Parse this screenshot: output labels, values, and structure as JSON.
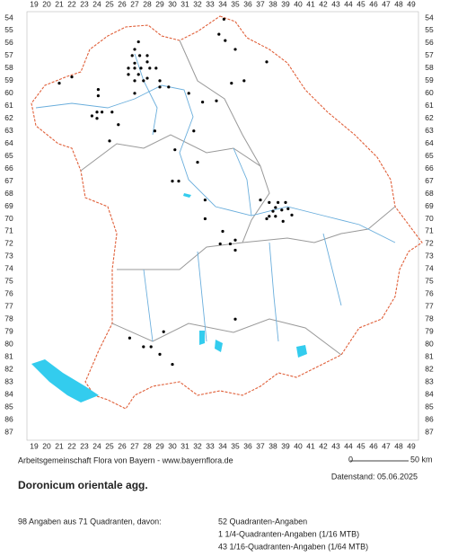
{
  "map": {
    "x_labels": [
      19,
      20,
      21,
      22,
      23,
      24,
      25,
      26,
      27,
      28,
      29,
      30,
      31,
      32,
      33,
      34,
      35,
      36,
      37,
      38,
      39,
      40,
      41,
      42,
      43,
      44,
      45,
      46,
      47,
      48,
      49
    ],
    "y_labels": [
      54,
      55,
      56,
      57,
      58,
      59,
      60,
      61,
      62,
      63,
      64,
      65,
      66,
      67,
      68,
      69,
      70,
      71,
      72,
      73,
      74,
      75,
      76,
      77,
      78,
      79,
      80,
      81,
      82,
      83,
      84,
      85,
      86,
      87
    ],
    "records": {
      "x": [
        34.1,
        33.7,
        34.2,
        27.3,
        27,
        26.8,
        27.4,
        28,
        27,
        28,
        26.5,
        27,
        27.5,
        28.2,
        28.7,
        26.5,
        27.3,
        28,
        27,
        27.7,
        29,
        35.7,
        34.7,
        37.5,
        35,
        21,
        22,
        24.1,
        24.1,
        27,
        29,
        29.7,
        31.3,
        32.4,
        33.5,
        24,
        23.6,
        24.4,
        25.2,
        24,
        25.7,
        28.6,
        31.7,
        25,
        30.2,
        32,
        30,
        30.5,
        32.6,
        37,
        37.7,
        38.4,
        39,
        38.2,
        38.7,
        39.2,
        38,
        37.7,
        38.2,
        39.5,
        37.5,
        32.6,
        38.8,
        34,
        35,
        34.6,
        33.8,
        35,
        35,
        26.6,
        27.7,
        28.3,
        29.3,
        30,
        29
      ],
      "y": [
        54.1,
        55.3,
        55.8,
        55.9,
        56.5,
        57,
        57,
        57,
        57.6,
        57.5,
        58,
        58,
        58,
        58,
        58,
        58.5,
        58.5,
        58.8,
        59,
        59,
        59,
        59,
        59.2,
        57.5,
        56.5,
        59.2,
        58.7,
        59.7,
        60.2,
        60,
        59.5,
        59.5,
        60,
        60.7,
        60.6,
        61.5,
        61.8,
        61.5,
        61.5,
        62,
        62.5,
        63,
        63,
        63.8,
        64.5,
        65.5,
        67,
        67,
        68.5,
        68.5,
        68.7,
        68.7,
        68.7,
        69.1,
        69.3,
        69.2,
        69.4,
        69.8,
        69.8,
        69.7,
        70,
        70,
        70.2,
        71,
        71.7,
        72,
        72,
        72.5,
        78,
        79.5,
        80.2,
        80.2,
        79,
        81.6,
        80.8
      ]
    }
  },
  "footer": {
    "credit": "Arbeitsgemeinschaft Flora von Bayern - www.bayernflora.de",
    "scale_start": "0",
    "scale_end": "50 km",
    "date": "Datenstand: 05.06.2025"
  },
  "species": "Doronicum orientale agg.",
  "stats": {
    "summary": "98 Angaben aus 71 Quadranten, davon:",
    "lines": [
      "52 Quadranten-Angaben",
      "1 1/4-Quadranten-Angaben (1/16 MTB)",
      "43 1/16-Quadranten-Angaben (1/64 MTB)"
    ]
  }
}
